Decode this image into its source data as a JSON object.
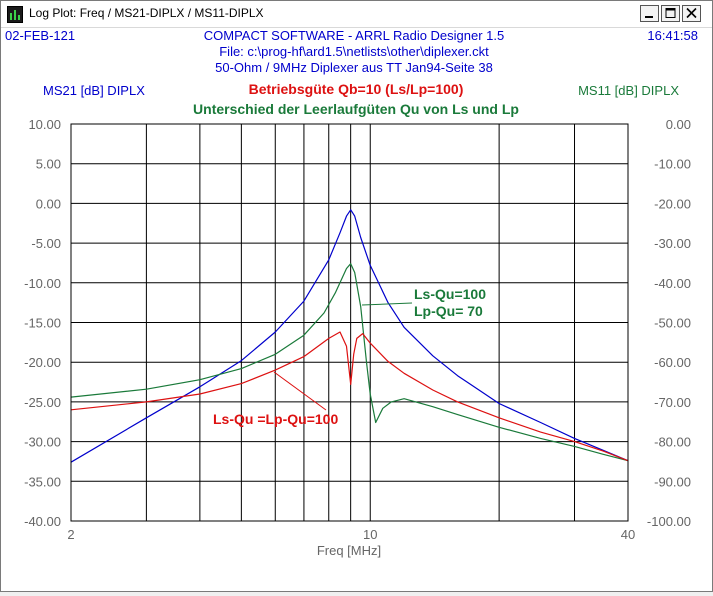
{
  "window": {
    "title": "Log Plot: Freq / MS21-DIPLX / MS11-DIPLX",
    "minimize_glyph": "_",
    "maximize_glyph": "□",
    "close_glyph": "×"
  },
  "header": {
    "date": "02-FEB-121",
    "time": "16:41:58",
    "line1": "COMPACT SOFTWARE - ARRL Radio Designer 1.5",
    "line2": "File: c:\\prog-hf\\ard1.5\\netlists\\other\\diplexer.ckt",
    "line3": "50-Ohm / 9MHz Diplexer aus  TT Jan94-Seite 38"
  },
  "colors": {
    "blue": "#0000cc",
    "green": "#1a7a3a",
    "red": "#dd1111",
    "grid": "#000000",
    "axis_text": "#666666"
  },
  "chart_data": {
    "type": "line",
    "title": "Betriebsgüte Qb=10  (Ls/Lp=100)",
    "subtitle": "Unterschied der Leerlaufgüten Qu von Ls und Lp",
    "xlabel": "Freq [MHz]",
    "x_scale": "log",
    "xlim": [
      2,
      40
    ],
    "x_ticks": [
      "2",
      "10",
      "40"
    ],
    "left_axis": {
      "label": "MS21 [dB] DIPLX",
      "ylim": [
        -40,
        10
      ],
      "ticks": [
        "10.00",
        "5.00",
        "0.00",
        "-5.00",
        "-10.00",
        "-15.00",
        "-20.00",
        "-25.00",
        "-30.00",
        "-35.00",
        "-40.00"
      ]
    },
    "right_axis": {
      "label": "MS11 [dB] DIPLX",
      "ylim": [
        -100,
        0
      ],
      "ticks": [
        "0.00",
        "-10.00",
        "-20.00",
        "-30.00",
        "-40.00",
        "-50.00",
        "-60.00",
        "-70.00",
        "-80.00",
        "-90.00",
        "-100.00"
      ]
    },
    "grid": true,
    "annotations": {
      "green_line1": "Ls-Qu=100",
      "green_line2": "Lp-Qu= 70",
      "red": "Ls-Qu =Lp-Qu=100"
    },
    "series": [
      {
        "axis": "left",
        "color": "blue",
        "x": [
          2,
          3,
          4,
          5,
          6,
          7,
          8,
          8.5,
          8.8,
          9.0,
          9.2,
          9.5,
          10,
          11,
          12,
          14,
          16,
          20,
          25,
          30,
          35,
          40
        ],
        "y": [
          -32.6,
          -27.0,
          -23.1,
          -19.8,
          -16.2,
          -12.3,
          -7.1,
          -3.7,
          -1.6,
          -0.8,
          -1.6,
          -4.3,
          -7.8,
          -12.5,
          -15.6,
          -19.2,
          -21.7,
          -25.2,
          -27.6,
          -29.6,
          -31.1,
          -32.4
        ]
      },
      {
        "axis": "left",
        "color": "green",
        "x": [
          2,
          3,
          4,
          5,
          6,
          7,
          7.8,
          8.3,
          8.8,
          9.0,
          9.2,
          9.5,
          9.8,
          10.0,
          10.3,
          10.7,
          11.2,
          12,
          14,
          16,
          20,
          25,
          30,
          35,
          40
        ],
        "y": [
          -24.4,
          -23.4,
          -22.2,
          -20.8,
          -19.0,
          -16.6,
          -13.8,
          -11.2,
          -8.2,
          -7.6,
          -8.7,
          -13.0,
          -20.0,
          -24.0,
          -27.6,
          -25.8,
          -25.0,
          -24.6,
          -25.6,
          -26.6,
          -28.2,
          -29.6,
          -30.6,
          -31.6,
          -32.4
        ]
      },
      {
        "axis": "left",
        "color": "red",
        "x": [
          2,
          3,
          4,
          5,
          6,
          7,
          8,
          8.5,
          8.8,
          9.0,
          9.15,
          9.3,
          9.6,
          10.0,
          11,
          12,
          14,
          16,
          20,
          25,
          30,
          35,
          40
        ],
        "y": [
          -26.0,
          -25.0,
          -24.0,
          -22.7,
          -21.0,
          -19.3,
          -17.0,
          -16.2,
          -18.0,
          -22.8,
          -19.0,
          -17.0,
          -16.4,
          -17.6,
          -19.9,
          -21.4,
          -23.5,
          -25.0,
          -27.0,
          -28.8,
          -30.0,
          -31.2,
          -32.4
        ]
      }
    ]
  }
}
